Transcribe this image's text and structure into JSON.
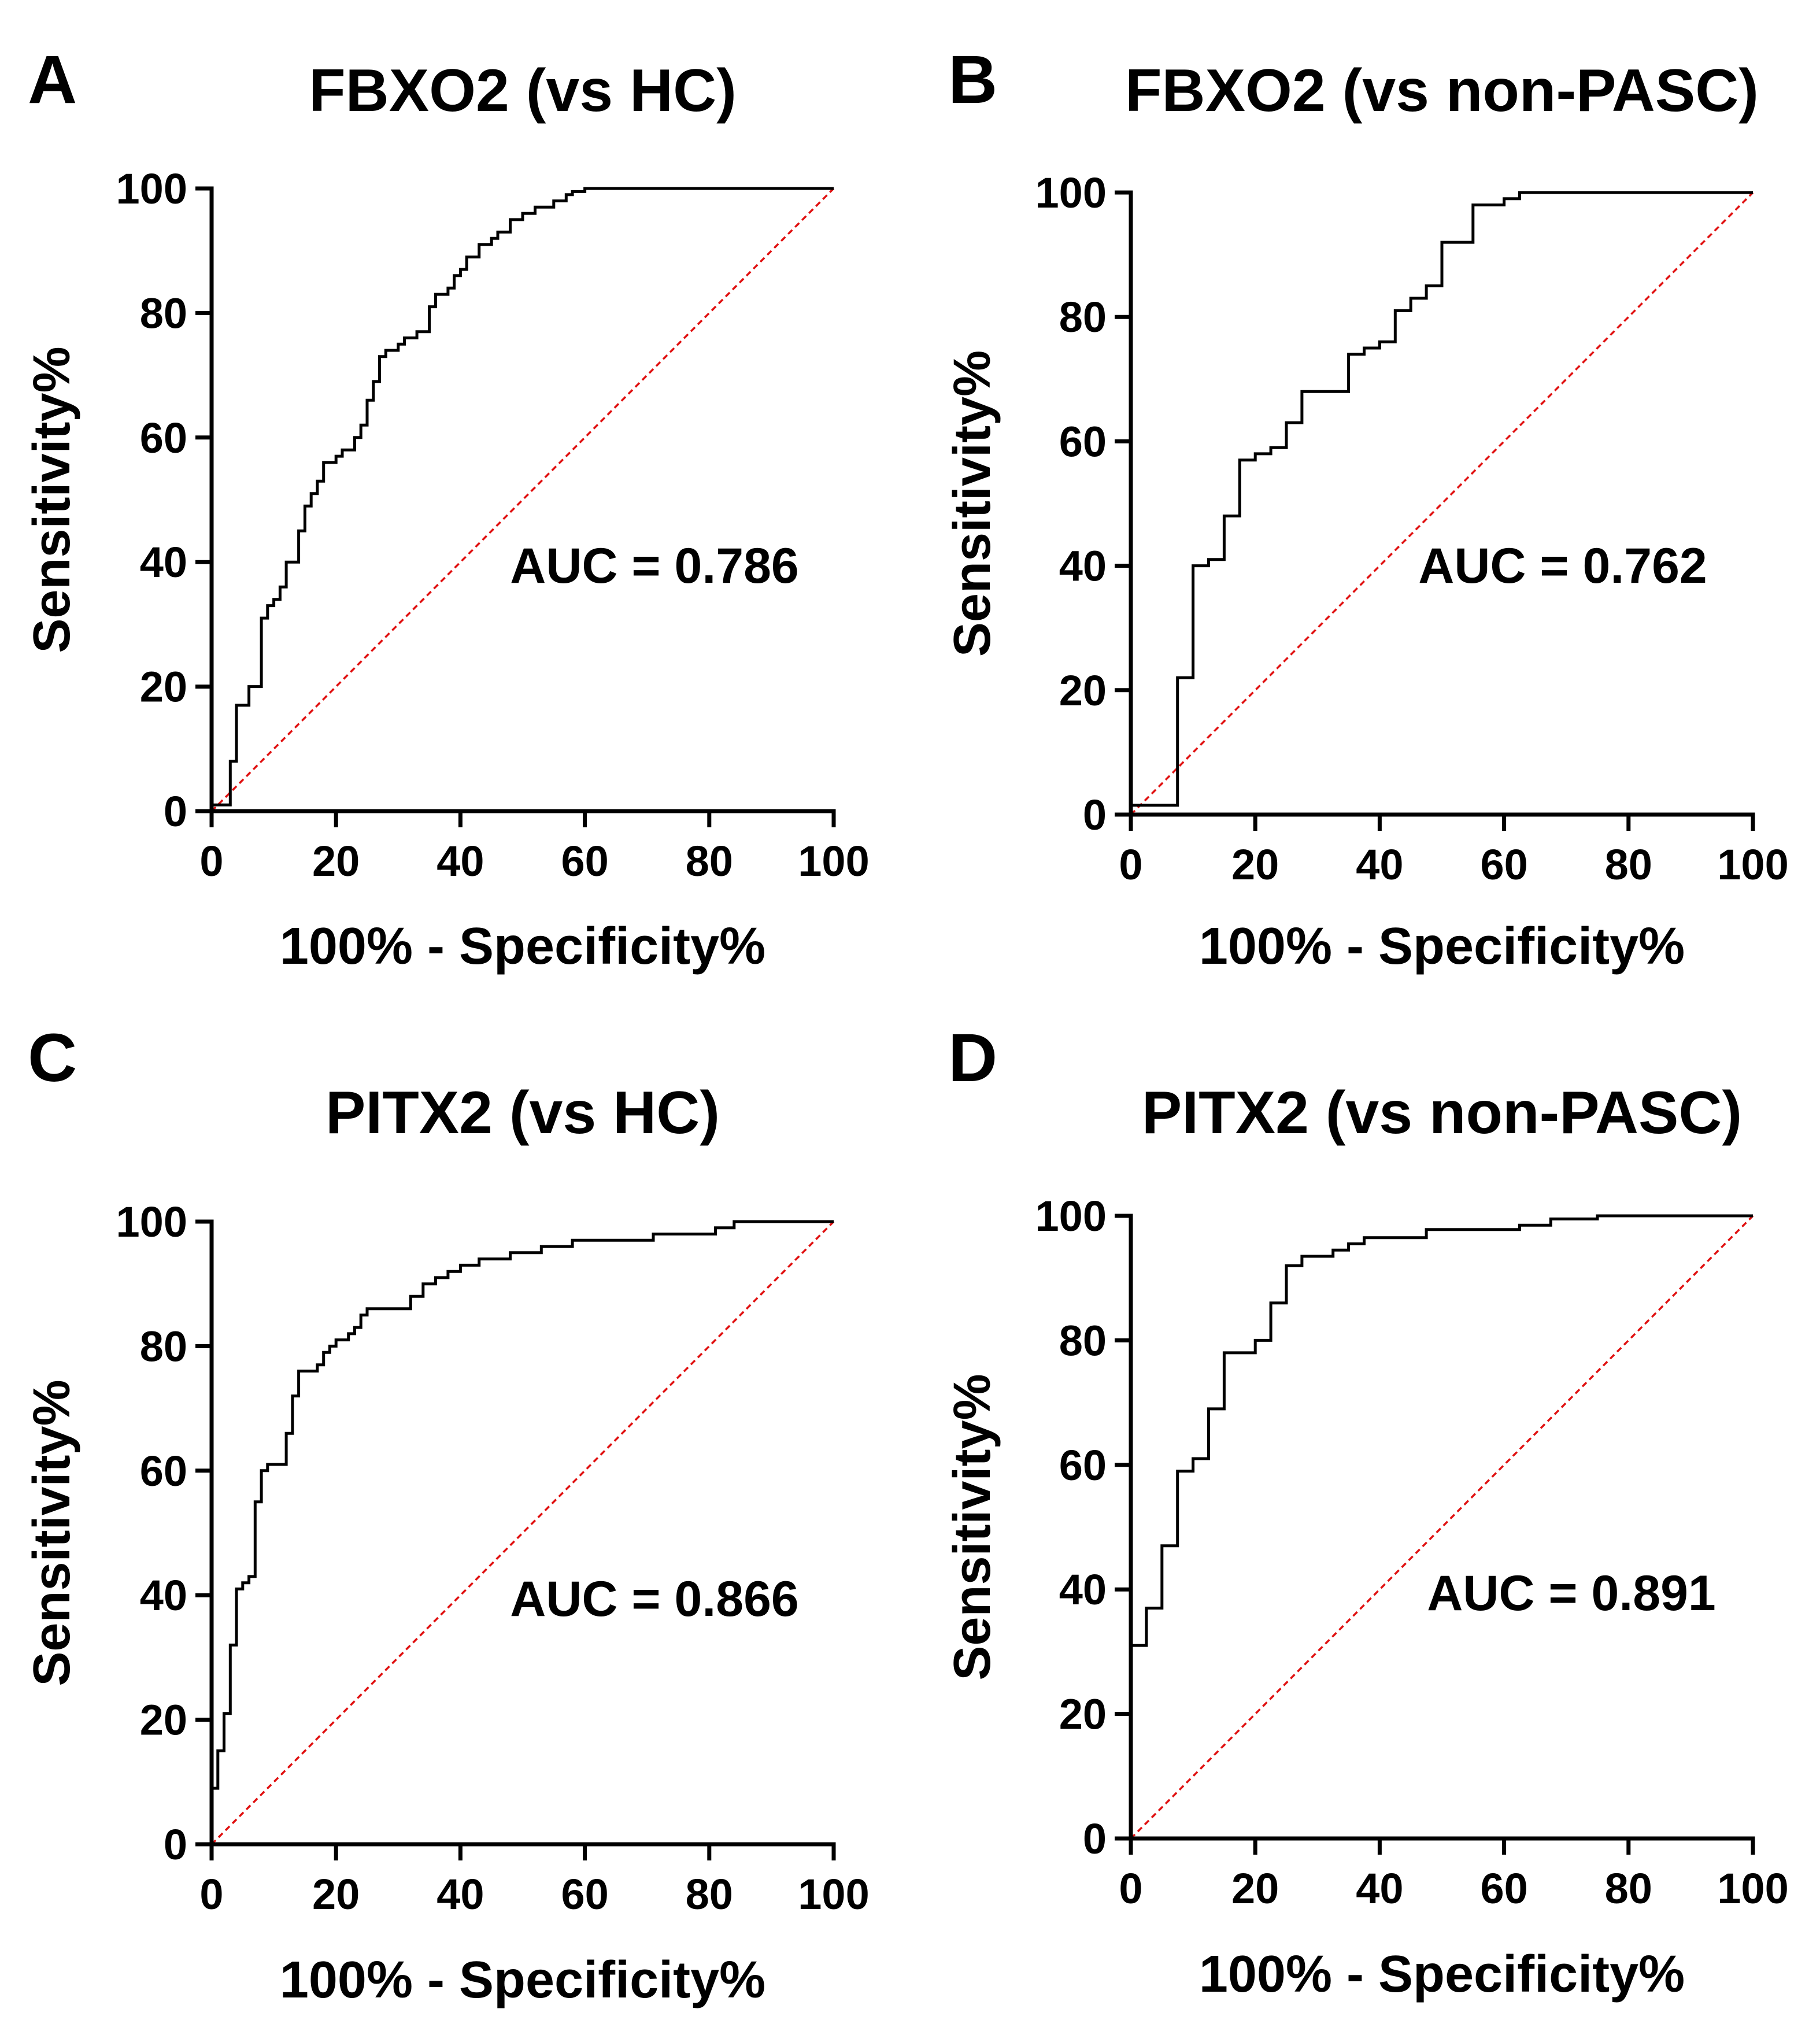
{
  "chart_data": [
    {
      "type": "line",
      "panel": "A",
      "title": "FBXO2 (vs HC)",
      "xlabel": "100% - Specificity%",
      "ylabel": "Sensitivity%",
      "auc_text": "AUC = 0.786",
      "xlim": [
        0,
        100
      ],
      "ylim": [
        0,
        100
      ],
      "xticks": [
        0,
        20,
        40,
        60,
        80,
        100
      ],
      "yticks": [
        0,
        20,
        40,
        60,
        80,
        100
      ],
      "series": [
        {
          "name": "ROC",
          "x": [
            0,
            3,
            3,
            4,
            4,
            6,
            6,
            8,
            8,
            9,
            9,
            10,
            10,
            11,
            11,
            12,
            12,
            14,
            14,
            15,
            15,
            16,
            16,
            17,
            17,
            18,
            18,
            20,
            20,
            21,
            21,
            23,
            23,
            24,
            24,
            25,
            25,
            26,
            26,
            27,
            27,
            28,
            28,
            30,
            30,
            31,
            31,
            33,
            33,
            35,
            35,
            36,
            36,
            38,
            38,
            39,
            39,
            40,
            40,
            41,
            41,
            43,
            43,
            45,
            45,
            46,
            46,
            48,
            48,
            50,
            50,
            52,
            52,
            55,
            55,
            57,
            57,
            58,
            58,
            60,
            60,
            72,
            72,
            100
          ],
          "y": [
            1,
            1,
            8,
            8,
            17,
            17,
            20,
            20,
            31,
            31,
            33,
            33,
            34,
            34,
            36,
            36,
            40,
            40,
            45,
            45,
            49,
            49,
            51,
            51,
            53,
            53,
            56,
            56,
            57,
            57,
            58,
            58,
            60,
            60,
            62,
            62,
            66,
            66,
            69,
            69,
            73,
            73,
            74,
            74,
            75,
            75,
            76,
            76,
            77,
            77,
            81,
            81,
            83,
            83,
            84,
            84,
            86,
            86,
            87,
            87,
            89,
            89,
            91,
            91,
            92,
            92,
            93,
            93,
            95,
            95,
            96,
            96,
            97,
            97,
            98,
            98,
            99,
            99,
            99.5,
            99.5,
            100,
            100,
            100,
            100
          ]
        },
        {
          "name": "Reference",
          "x": [
            0,
            100
          ],
          "y": [
            0,
            100
          ]
        }
      ]
    },
    {
      "type": "line",
      "panel": "B",
      "title": "FBXO2 (vs non-PASC)",
      "xlabel": "100% - Specificity%",
      "ylabel": "Sensitivity%",
      "auc_text": "AUC = 0.762",
      "xlim": [
        0,
        100
      ],
      "ylim": [
        0,
        100
      ],
      "xticks": [
        0,
        20,
        40,
        60,
        80,
        100
      ],
      "yticks": [
        0,
        20,
        40,
        60,
        80,
        100
      ],
      "series": [
        {
          "name": "ROC",
          "x": [
            0,
            7.5,
            7.5,
            10,
            10,
            12.5,
            12.5,
            15,
            15,
            17.5,
            17.5,
            20,
            20,
            22.5,
            22.5,
            25,
            25,
            27.5,
            27.5,
            35,
            35,
            37.5,
            37.5,
            40,
            40,
            42.5,
            42.5,
            45,
            45,
            47.5,
            47.5,
            50,
            50,
            55,
            55,
            60,
            60,
            62.5,
            62.5,
            100
          ],
          "y": [
            1.5,
            1.5,
            22,
            22,
            40,
            40,
            41,
            41,
            48,
            48,
            57,
            57,
            58,
            58,
            59,
            59,
            63,
            63,
            68,
            68,
            74,
            74,
            75,
            75,
            76,
            76,
            81,
            81,
            83,
            83,
            85,
            85,
            92,
            92,
            98,
            98,
            99,
            99,
            100,
            100
          ]
        },
        {
          "name": "Reference",
          "x": [
            0,
            100
          ],
          "y": [
            0,
            100
          ]
        }
      ]
    },
    {
      "type": "line",
      "panel": "C",
      "title": "PITX2 (vs HC)",
      "xlabel": "100% - Specificity%",
      "ylabel": "Sensitivity%",
      "auc_text": "AUC = 0.866",
      "xlim": [
        0,
        100
      ],
      "ylim": [
        0,
        100
      ],
      "xticks": [
        0,
        20,
        40,
        60,
        80,
        100
      ],
      "yticks": [
        0,
        20,
        40,
        60,
        80,
        100
      ],
      "series": [
        {
          "name": "ROC",
          "x": [
            0,
            0,
            1,
            1,
            2,
            2,
            3,
            3,
            4,
            4,
            5,
            5,
            6,
            6,
            7,
            7,
            8,
            8,
            9,
            9,
            12,
            12,
            13,
            13,
            14,
            14,
            17,
            17,
            18,
            18,
            19,
            19,
            20,
            20,
            22,
            22,
            23,
            23,
            24,
            24,
            25,
            25,
            26,
            26,
            32,
            32,
            34,
            34,
            36,
            36,
            38,
            38,
            40,
            40,
            43,
            43,
            48,
            48,
            53,
            53,
            58,
            58,
            63,
            63,
            71,
            71,
            81,
            81,
            84,
            84,
            100
          ],
          "y": [
            0,
            9,
            9,
            15,
            15,
            21,
            21,
            32,
            32,
            41,
            41,
            42,
            42,
            43,
            43,
            55,
            55,
            60,
            60,
            61,
            61,
            66,
            66,
            72,
            72,
            76,
            76,
            77,
            77,
            79,
            79,
            80,
            80,
            81,
            81,
            82,
            82,
            83,
            83,
            85,
            85,
            86,
            86,
            86,
            86,
            88,
            88,
            90,
            90,
            91,
            91,
            92,
            92,
            93,
            93,
            94,
            94,
            95,
            95,
            96,
            96,
            97,
            97,
            97,
            97,
            98,
            98,
            99,
            99,
            100,
            100
          ]
        },
        {
          "name": "Reference",
          "x": [
            0,
            100
          ],
          "y": [
            0,
            100
          ]
        }
      ]
    },
    {
      "type": "line",
      "panel": "D",
      "title": "PITX2 (vs non-PASC)",
      "xlabel": "100% - Specificity%",
      "ylabel": "Sensitivity%",
      "auc_text": "AUC = 0.891",
      "xlim": [
        0,
        100
      ],
      "ylim": [
        0,
        100
      ],
      "xticks": [
        0,
        20,
        40,
        60,
        80,
        100
      ],
      "yticks": [
        0,
        20,
        40,
        60,
        80,
        100
      ],
      "series": [
        {
          "name": "ROC",
          "x": [
            0,
            2.5,
            2.5,
            5,
            5,
            7.5,
            7.5,
            10,
            10,
            12.5,
            12.5,
            15,
            15,
            20,
            20,
            22.5,
            22.5,
            25,
            25,
            27.5,
            27.5,
            32.5,
            32.5,
            35,
            35,
            37.5,
            37.5,
            47.5,
            47.5,
            62.5,
            62.5,
            67.5,
            67.5,
            75,
            75,
            100
          ],
          "y": [
            31,
            31,
            37,
            37,
            47,
            47,
            59,
            59,
            61,
            61,
            69,
            69,
            78,
            78,
            80,
            80,
            86,
            86,
            92,
            92,
            93.5,
            93.5,
            94.5,
            94.5,
            95.5,
            95.5,
            96.5,
            96.5,
            97.8,
            97.8,
            98.5,
            98.5,
            99.5,
            99.5,
            100,
            100
          ]
        },
        {
          "name": "Reference",
          "x": [
            0,
            100
          ],
          "y": [
            0,
            100
          ]
        }
      ]
    }
  ]
}
